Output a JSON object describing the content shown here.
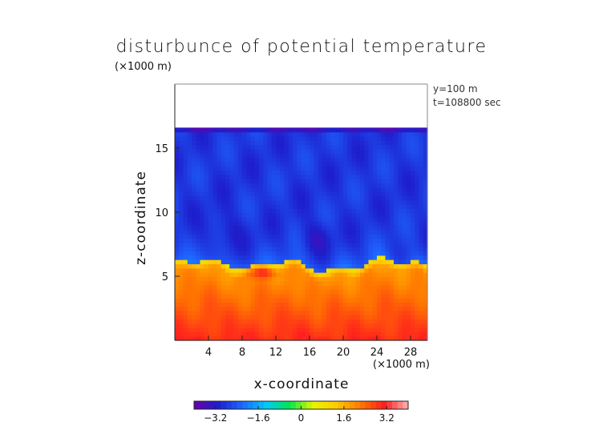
{
  "chart_data": {
    "type": "heatmap",
    "title": "disturbunce of potential temperature",
    "xlabel": "x-coordinate",
    "ylabel": "z-coordinate",
    "x_unit": "(×1000 m)",
    "y_unit": "(×1000 m)",
    "annotations": [
      "y=100 m",
      "t=108800 sec"
    ],
    "xlim": [
      0,
      30
    ],
    "ylim": [
      0,
      20
    ],
    "x_ticks": [
      4,
      8,
      12,
      16,
      20,
      24,
      28
    ],
    "y_ticks": [
      5,
      10,
      15
    ],
    "colorbar": {
      "range": [
        -4,
        4
      ],
      "ticks": [
        -3.2,
        -1.6,
        0,
        1.6,
        3.2
      ],
      "tick_labels": [
        "-3.2",
        "-1.6",
        "0",
        "1.6",
        "3.2"
      ],
      "colormap": [
        "#6a00a8",
        "#1e1ecc",
        "#1e64ff",
        "#00c8ff",
        "#00e650",
        "#e6f500",
        "#ffc800",
        "#ff7800",
        "#ff1e1e",
        "#ffb4b4"
      ]
    },
    "field_description": {
      "domain_top_z": 16.6,
      "upper_layer_value": -2.8,
      "inversion_z": 6.0,
      "lower_layer_surface_value": 3.0,
      "lower_layer_top_value": 1.8,
      "warm_bubble": {
        "x": 10.5,
        "z": 5.4,
        "value": 3.1
      }
    }
  }
}
